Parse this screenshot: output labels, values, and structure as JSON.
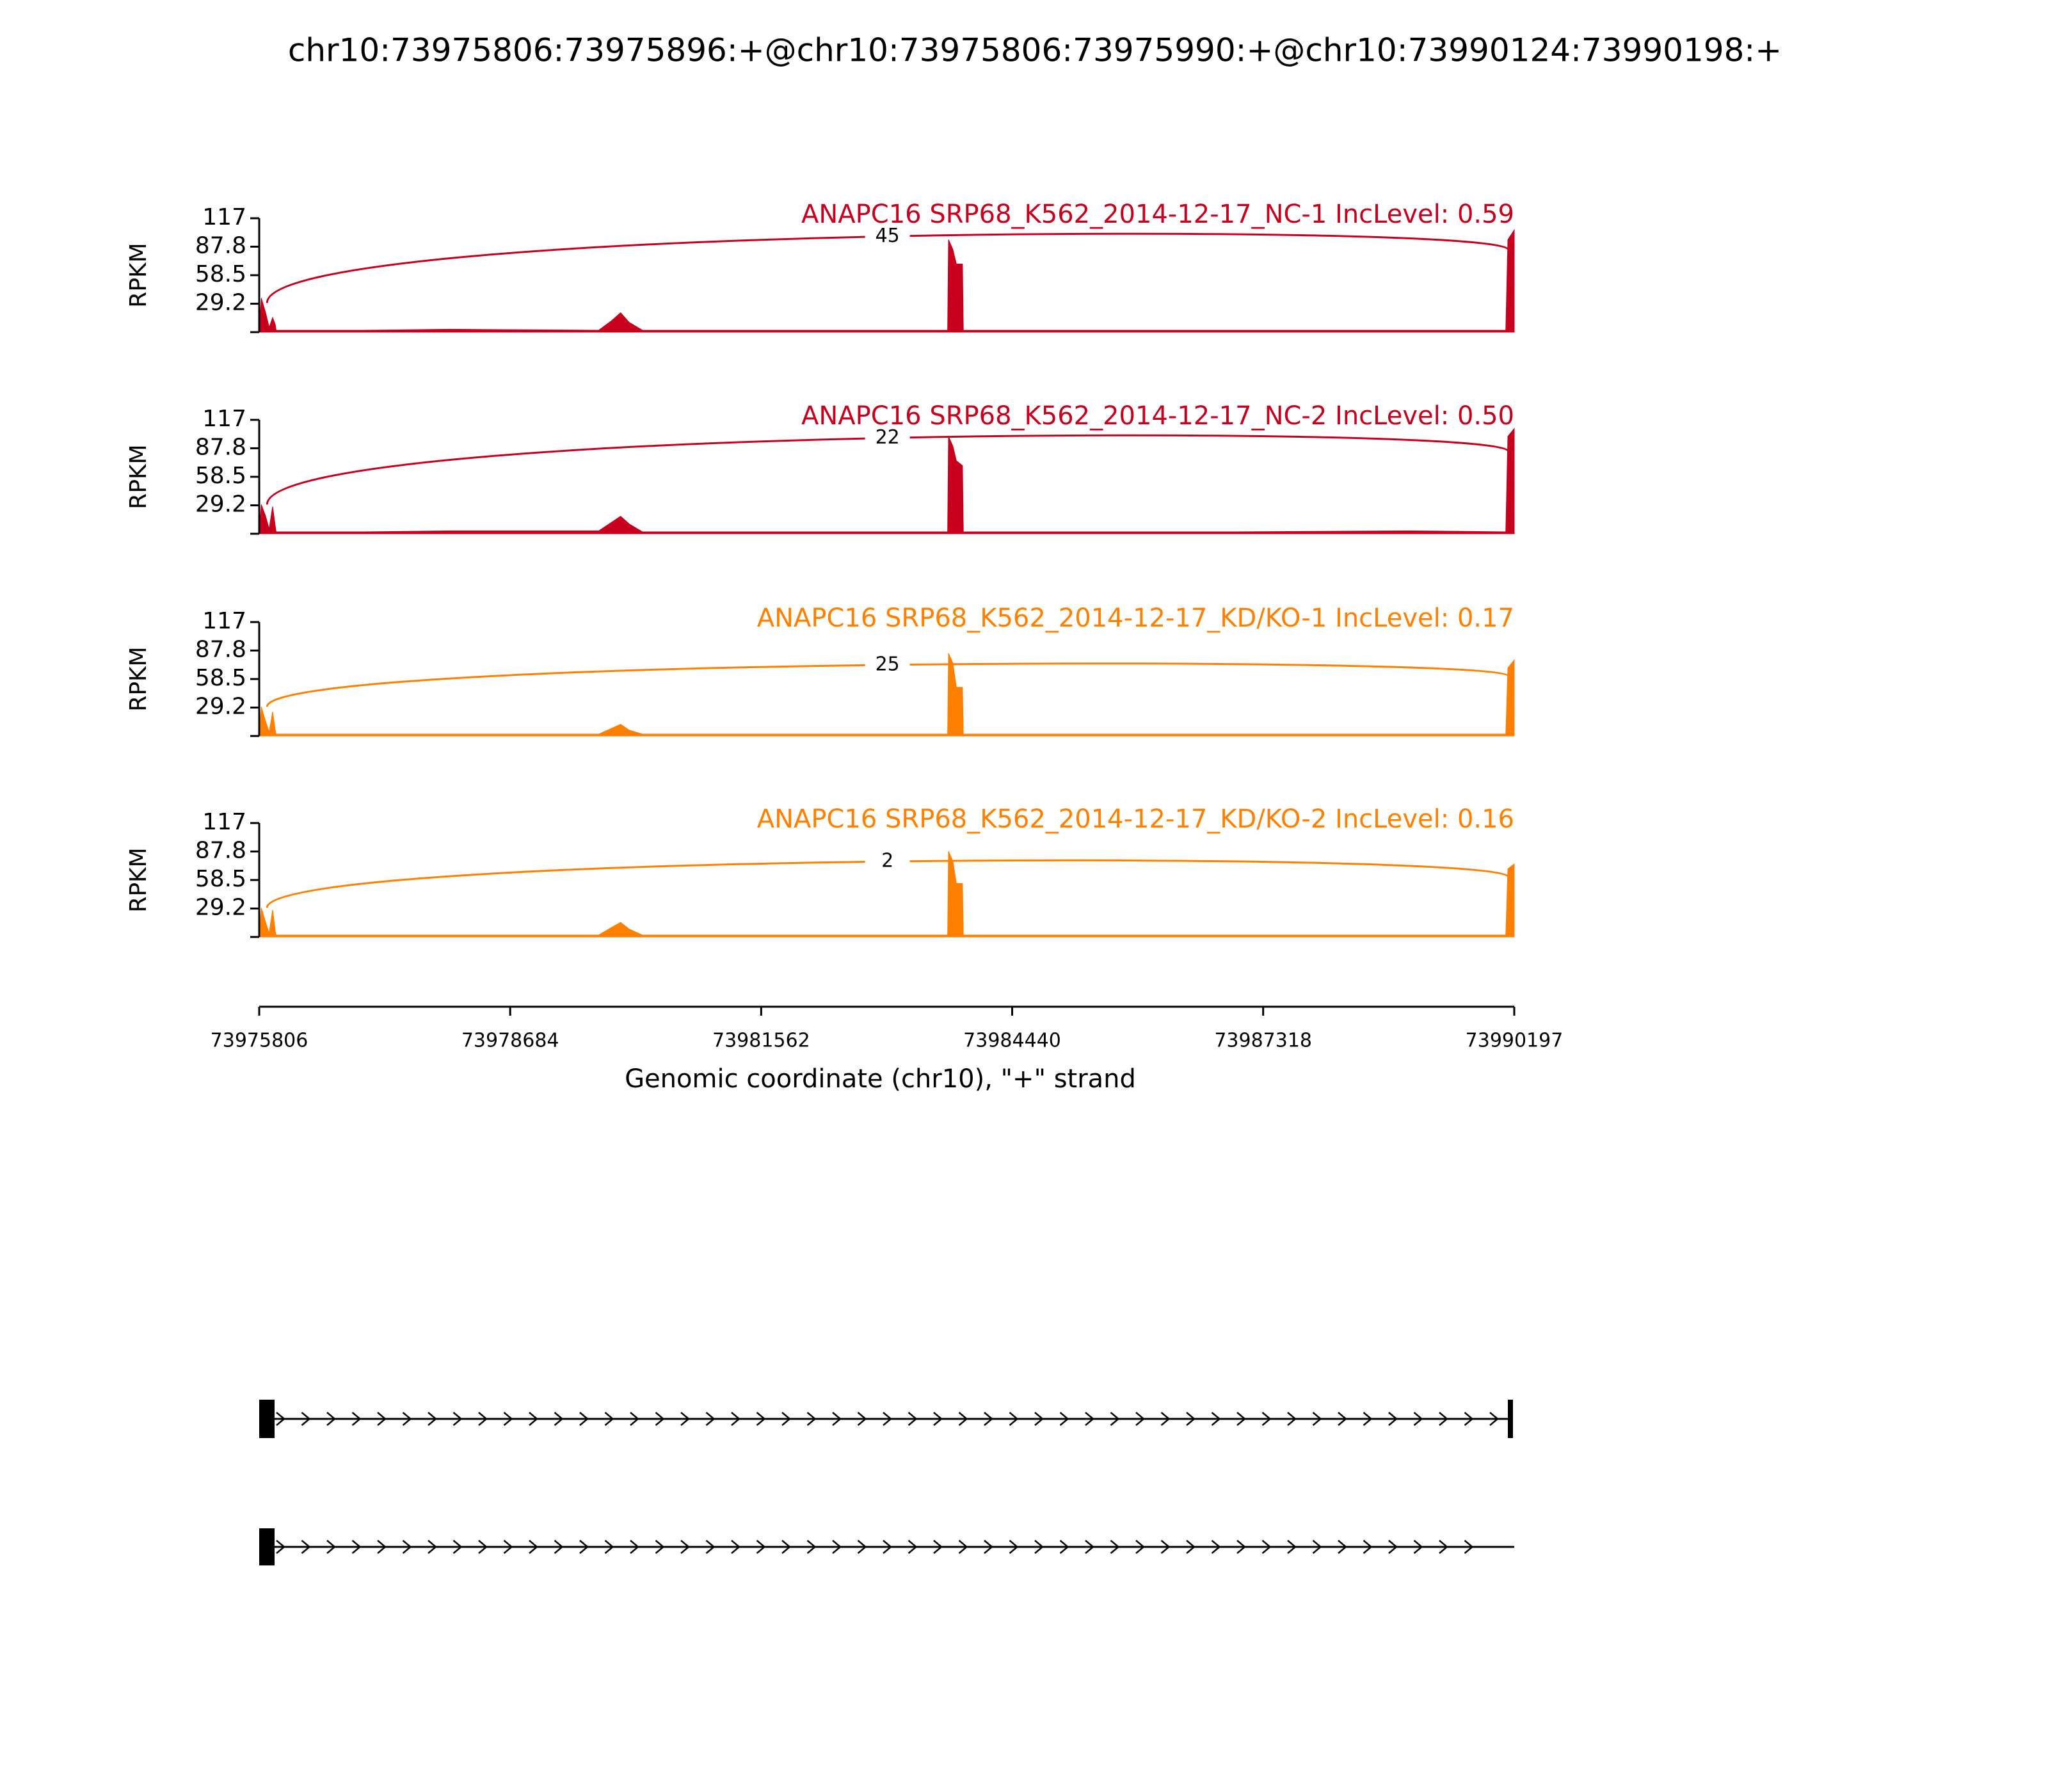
{
  "title": "chr10:73975806:73975896:+@chr10:73975806:73975990:+@chr10:73990124:73990198:+",
  "x_axis": {
    "xlim": [
      73975806,
      73990197
    ],
    "xticks": [
      73975806,
      73978684,
      73981562,
      73984440,
      73987318,
      73990197
    ],
    "xlabel": "Genomic coordinate (chr10), \"+\" strand"
  },
  "chart_data": [
    {
      "type": "area",
      "title": "ANAPC16 SRP68_K562_2014-12-17_NC-1 IncLevel: 0.59",
      "color": "#c8001e",
      "ylabel": "RPKM",
      "ylim": [
        0,
        117
      ],
      "yticks": [
        29.2,
        58.5,
        87.8,
        117
      ],
      "x": [
        73975806,
        73975830,
        73975880,
        73975920,
        73975960,
        73975990,
        73976000,
        73977000,
        73978000,
        73979700,
        73979850,
        73979950,
        73980050,
        73980200,
        73981000,
        73982500,
        73983700,
        73983710,
        73983760,
        73983800,
        73983870,
        73983880,
        73985000,
        73987000,
        73989000,
        73990100,
        73990124,
        73990197
      ],
      "values": [
        0,
        35,
        20,
        5,
        15,
        8,
        2,
        2,
        3,
        2,
        12,
        20,
        10,
        2,
        2,
        2,
        2,
        95,
        85,
        70,
        70,
        2,
        2,
        2,
        2,
        2,
        95,
        105
      ],
      "junctions": [
        {
          "start": 73975896,
          "end": 73990124,
          "count": 45
        }
      ]
    },
    {
      "type": "area",
      "title": "ANAPC16 SRP68_K562_2014-12-17_NC-2 IncLevel: 0.50",
      "color": "#c8001e",
      "ylabel": "RPKM",
      "ylim": [
        0,
        117
      ],
      "yticks": [
        29.2,
        58.5,
        87.8,
        117
      ],
      "x": [
        73975806,
        73975830,
        73975880,
        73975920,
        73975960,
        73975990,
        73976000,
        73977000,
        73978000,
        73979700,
        73979850,
        73979950,
        73980050,
        73980200,
        73981000,
        73982500,
        73983700,
        73983710,
        73983760,
        73983800,
        73983870,
        73983880,
        73985000,
        73987000,
        73989000,
        73990100,
        73990124,
        73990197
      ],
      "values": [
        0,
        30,
        18,
        5,
        28,
        8,
        2,
        2,
        3,
        3,
        12,
        18,
        10,
        2,
        2,
        2,
        2,
        100,
        90,
        75,
        70,
        2,
        2,
        2,
        3,
        2,
        100,
        108
      ],
      "junctions": [
        {
          "start": 73975896,
          "end": 73990124,
          "count": 22
        }
      ]
    },
    {
      "type": "area",
      "title": "ANAPC16 SRP68_K562_2014-12-17_KD/KO-1 IncLevel: 0.17",
      "color": "#ff8000",
      "ylabel": "RPKM",
      "ylim": [
        0,
        117
      ],
      "yticks": [
        29.2,
        58.5,
        87.8,
        117
      ],
      "x": [
        73975806,
        73975830,
        73975880,
        73975920,
        73975960,
        73975990,
        73976000,
        73977000,
        73978000,
        73979700,
        73979850,
        73979950,
        73980050,
        73980200,
        73981000,
        73982500,
        73983700,
        73983710,
        73983760,
        73983800,
        73983870,
        73983880,
        73985000,
        73987000,
        73989000,
        73990100,
        73990124,
        73990197
      ],
      "values": [
        0,
        30,
        15,
        4,
        25,
        6,
        2,
        2,
        2,
        2,
        8,
        12,
        6,
        2,
        2,
        2,
        2,
        85,
        75,
        50,
        50,
        2,
        2,
        2,
        2,
        2,
        70,
        78
      ],
      "junctions": [
        {
          "start": 73975896,
          "end": 73990124,
          "count": 25
        }
      ]
    },
    {
      "type": "area",
      "title": "ANAPC16 SRP68_K562_2014-12-17_KD/KO-2 IncLevel: 0.16",
      "color": "#ff8000",
      "ylabel": "RPKM",
      "ylim": [
        0,
        117
      ],
      "yticks": [
        29.2,
        58.5,
        87.8,
        117
      ],
      "x": [
        73975806,
        73975830,
        73975880,
        73975920,
        73975960,
        73975990,
        73976000,
        73977000,
        73978000,
        73979700,
        73979850,
        73979950,
        73980050,
        73980200,
        73981000,
        73982500,
        73983700,
        73983710,
        73983760,
        73983800,
        73983870,
        73983880,
        73985000,
        73987000,
        73989000,
        73990100,
        73990124,
        73990197
      ],
      "values": [
        0,
        30,
        15,
        4,
        28,
        6,
        2,
        2,
        2,
        2,
        10,
        15,
        8,
        2,
        2,
        2,
        2,
        88,
        78,
        55,
        55,
        2,
        2,
        2,
        2,
        2,
        70,
        75
      ],
      "junctions": [
        {
          "start": 73975896,
          "end": 73990124,
          "count": 2
        }
      ]
    }
  ]
}
